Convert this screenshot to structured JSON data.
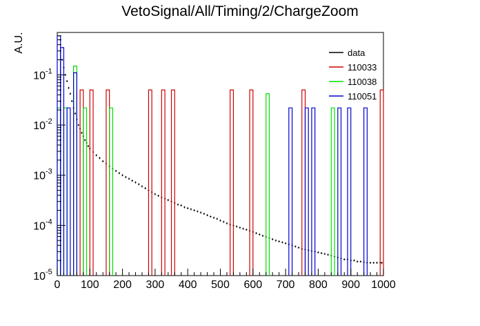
{
  "chart_data": {
    "type": "histogram",
    "title": "VetoSignal/All/Timing/2/ChargeZoom",
    "xlabel": "",
    "ylabel": "A.U.",
    "xlim": [
      0,
      1000
    ],
    "ylim": [
      1e-05,
      0.7
    ],
    "yscale": "log",
    "x_ticks": [
      0,
      100,
      200,
      300,
      400,
      500,
      600,
      700,
      800,
      900,
      1000
    ],
    "y_ticks": [
      {
        "value": 1e-05,
        "base": "10",
        "exp": "-5"
      },
      {
        "value": 0.0001,
        "base": "10",
        "exp": "-4"
      },
      {
        "value": 0.001,
        "base": "10",
        "exp": "-3"
      },
      {
        "value": 0.01,
        "base": "10",
        "exp": "-2"
      },
      {
        "value": 0.1,
        "base": "10",
        "exp": "-1"
      }
    ],
    "legend_position": "top-right",
    "grid": false,
    "series": [
      {
        "name": "data",
        "color": "#000000",
        "style": "error-steps",
        "bin_width": 5,
        "points": [
          [
            10,
            0.5
          ],
          [
            15,
            0.2
          ],
          [
            20,
            0.14
          ],
          [
            25,
            0.1
          ],
          [
            30,
            0.075
          ],
          [
            35,
            0.055
          ],
          [
            40,
            0.042
          ],
          [
            45,
            0.03
          ],
          [
            50,
            0.022
          ],
          [
            55,
            0.017
          ],
          [
            60,
            0.013
          ],
          [
            65,
            0.01
          ],
          [
            70,
            0.0085
          ],
          [
            75,
            0.007
          ],
          [
            80,
            0.006
          ],
          [
            85,
            0.005
          ],
          [
            90,
            0.0044
          ],
          [
            95,
            0.0038
          ],
          [
            100,
            0.0034
          ],
          [
            110,
            0.0029
          ],
          [
            120,
            0.0025
          ],
          [
            130,
            0.0022
          ],
          [
            140,
            0.0019
          ],
          [
            150,
            0.0017
          ],
          [
            160,
            0.0015
          ],
          [
            170,
            0.00135
          ],
          [
            180,
            0.00122
          ],
          [
            190,
            0.0011
          ],
          [
            200,
            0.001
          ],
          [
            210,
            0.00092
          ],
          [
            220,
            0.00085
          ],
          [
            230,
            0.00078
          ],
          [
            240,
            0.00072
          ],
          [
            250,
            0.00066
          ],
          [
            260,
            0.0006
          ],
          [
            270,
            0.00055
          ],
          [
            280,
            0.0005
          ],
          [
            290,
            0.00046
          ],
          [
            300,
            0.00042
          ],
          [
            310,
            0.00039
          ],
          [
            320,
            0.00036
          ],
          [
            330,
            0.00034
          ],
          [
            340,
            0.00032
          ],
          [
            350,
            0.0003
          ],
          [
            360,
            0.00028
          ],
          [
            370,
            0.00026
          ],
          [
            380,
            0.00025
          ],
          [
            390,
            0.00023
          ],
          [
            400,
            0.00022
          ],
          [
            410,
            0.00021
          ],
          [
            420,
            0.0002
          ],
          [
            430,
            0.00019
          ],
          [
            440,
            0.00018
          ],
          [
            450,
            0.00017
          ],
          [
            460,
            0.00016
          ],
          [
            470,
            0.00015
          ],
          [
            480,
            0.000142
          ],
          [
            490,
            0.000135
          ],
          [
            500,
            0.000125
          ],
          [
            510,
            0.000118
          ],
          [
            520,
            0.00011
          ],
          [
            530,
            0.000104
          ],
          [
            540,
            0.0001
          ],
          [
            550,
            9.5e-05
          ],
          [
            560,
            9e-05
          ],
          [
            570,
            8.6e-05
          ],
          [
            580,
            8.2e-05
          ],
          [
            590,
            7.8e-05
          ],
          [
            600,
            7.4e-05
          ],
          [
            610,
            7e-05
          ],
          [
            620,
            6.6e-05
          ],
          [
            630,
            6.2e-05
          ],
          [
            640,
            5.9e-05
          ],
          [
            650,
            5.6e-05
          ],
          [
            660,
            5.3e-05
          ],
          [
            670,
            5e-05
          ],
          [
            680,
            4.8e-05
          ],
          [
            690,
            4.6e-05
          ],
          [
            700,
            4.4e-05
          ],
          [
            710,
            4.2e-05
          ],
          [
            720,
            4e-05
          ],
          [
            730,
            3.8e-05
          ],
          [
            740,
            3.6e-05
          ],
          [
            750,
            3.4e-05
          ],
          [
            760,
            3.3e-05
          ],
          [
            770,
            3.2e-05
          ],
          [
            780,
            3.1e-05
          ],
          [
            790,
            3e-05
          ],
          [
            800,
            2.9e-05
          ],
          [
            810,
            2.8e-05
          ],
          [
            820,
            2.7e-05
          ],
          [
            830,
            2.6e-05
          ],
          [
            840,
            2.5e-05
          ],
          [
            850,
            2.4e-05
          ],
          [
            860,
            2.3e-05
          ],
          [
            870,
            2.2e-05
          ],
          [
            880,
            2.1e-05
          ],
          [
            890,
            2.1e-05
          ],
          [
            900,
            2e-05
          ],
          [
            910,
            2e-05
          ],
          [
            920,
            1.9e-05
          ],
          [
            930,
            1.9e-05
          ],
          [
            940,
            1.85e-05
          ],
          [
            950,
            1.8e-05
          ],
          [
            960,
            1.8e-05
          ],
          [
            970,
            1.8e-05
          ],
          [
            980,
            1.8e-05
          ],
          [
            990,
            1.8e-05
          ],
          [
            995,
            1.8e-05
          ]
        ]
      },
      {
        "name": "110033",
        "color": "#cc0000",
        "style": "bars",
        "bin_width": 10,
        "bins": [
          [
            70,
            0.05
          ],
          [
            100,
            0.05
          ],
          [
            150,
            0.05
          ],
          [
            280,
            0.05
          ],
          [
            320,
            0.05
          ],
          [
            350,
            0.05
          ],
          [
            530,
            0.05
          ],
          [
            590,
            0.05
          ],
          [
            750,
            0.05
          ],
          [
            990,
            0.05
          ]
        ]
      },
      {
        "name": "110038",
        "color": "#00dd00",
        "style": "bars",
        "bin_width": 10,
        "bins": [
          [
            0,
            0.022
          ],
          [
            20,
            0.022
          ],
          [
            50,
            0.15
          ],
          [
            80,
            0.022
          ],
          [
            160,
            0.022
          ],
          [
            640,
            0.042
          ],
          [
            840,
            0.022
          ]
        ]
      },
      {
        "name": "110051",
        "color": "#0000cc",
        "style": "bars",
        "bin_width": 10,
        "bins": [
          [
            0,
            0.6
          ],
          [
            10,
            0.35
          ],
          [
            30,
            0.022
          ],
          [
            50,
            0.11
          ],
          [
            710,
            0.022
          ],
          [
            760,
            0.022
          ],
          [
            780,
            0.022
          ],
          [
            860,
            0.022
          ],
          [
            890,
            0.022
          ],
          [
            940,
            0.022
          ]
        ]
      }
    ]
  }
}
